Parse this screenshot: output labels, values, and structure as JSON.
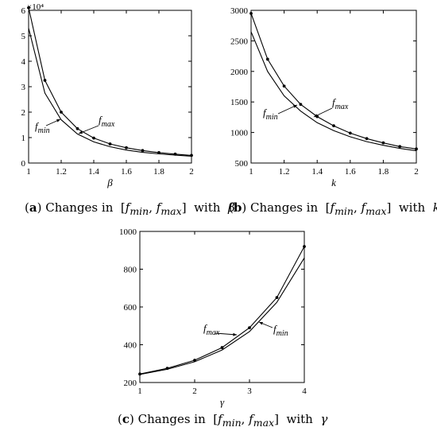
{
  "chart_data": [
    {
      "type": "line",
      "panel": "a",
      "caption": {
        "label": "a",
        "text": "Changes in [f_min, f_max] with β"
      },
      "xlabel": "β",
      "ylabel": "",
      "xlim": [
        1,
        2
      ],
      "ylim": [
        0,
        60000
      ],
      "x_ticks": [
        "1",
        "1.2",
        "1.4",
        "1.6",
        "1.8",
        "2"
      ],
      "y_ticks": [
        "0",
        "1",
        "2",
        "3",
        "4",
        "5",
        "6"
      ],
      "y_multiplier": "×10⁴",
      "annotations": [
        "f_min",
        "f_max"
      ],
      "series": [
        {
          "name": "f_max",
          "markers": true,
          "x": [
            1,
            1.1,
            1.2,
            1.3,
            1.4,
            1.5,
            1.6,
            1.7,
            1.8,
            1.9,
            2
          ],
          "values": [
            61000,
            32500,
            20000,
            13500,
            9800,
            7500,
            6000,
            4900,
            4100,
            3500,
            3000
          ]
        },
        {
          "name": "f_min",
          "markers": false,
          "x": [
            1,
            1.1,
            1.2,
            1.3,
            1.4,
            1.5,
            1.6,
            1.7,
            1.8,
            1.9,
            2
          ],
          "values": [
            53000,
            27500,
            17000,
            11400,
            8300,
            6400,
            5100,
            4200,
            3600,
            3100,
            2700
          ]
        }
      ]
    },
    {
      "type": "line",
      "panel": "b",
      "caption": {
        "label": "b",
        "text": "Changes in [f_min, f_max] with k"
      },
      "xlabel": "k",
      "ylabel": "",
      "xlim": [
        1,
        2
      ],
      "ylim": [
        500,
        3000
      ],
      "x_ticks": [
        "1",
        "1.2",
        "1.4",
        "1.6",
        "1.8",
        "2"
      ],
      "y_ticks": [
        "500",
        "1000",
        "1500",
        "2000",
        "2500",
        "3000"
      ],
      "annotations": [
        "f_min",
        "f_max"
      ],
      "series": [
        {
          "name": "f_max",
          "markers": true,
          "x": [
            1,
            1.1,
            1.2,
            1.3,
            1.4,
            1.5,
            1.6,
            1.7,
            1.8,
            1.9,
            2
          ],
          "values": [
            2950,
            2200,
            1760,
            1460,
            1260,
            1110,
            990,
            900,
            830,
            770,
            730
          ]
        },
        {
          "name": "f_min",
          "markers": false,
          "x": [
            1,
            1.1,
            1.2,
            1.3,
            1.4,
            1.5,
            1.6,
            1.7,
            1.8,
            1.9,
            2
          ],
          "values": [
            2650,
            2000,
            1600,
            1350,
            1160,
            1030,
            930,
            850,
            790,
            740,
            700
          ]
        }
      ]
    },
    {
      "type": "line",
      "panel": "c",
      "caption": {
        "label": "c",
        "text": "Changes in [f_min, f_max] with γ"
      },
      "xlabel": "γ",
      "ylabel": "",
      "xlim": [
        1,
        4
      ],
      "ylim": [
        200,
        1000
      ],
      "x_ticks": [
        "1",
        "2",
        "3",
        "4"
      ],
      "y_ticks": [
        "200",
        "400",
        "600",
        "800",
        "1000"
      ],
      "annotations": [
        "f_max",
        "f_min"
      ],
      "series": [
        {
          "name": "f_max",
          "markers": true,
          "x": [
            1,
            1.5,
            2,
            2.5,
            3,
            3.5,
            4
          ],
          "values": [
            245,
            275,
            318,
            385,
            490,
            650,
            920
          ]
        },
        {
          "name": "f_min",
          "markers": false,
          "x": [
            1,
            1.5,
            2,
            2.5,
            3,
            3.5,
            4
          ],
          "values": [
            243,
            270,
            310,
            372,
            470,
            625,
            860
          ]
        }
      ]
    }
  ]
}
